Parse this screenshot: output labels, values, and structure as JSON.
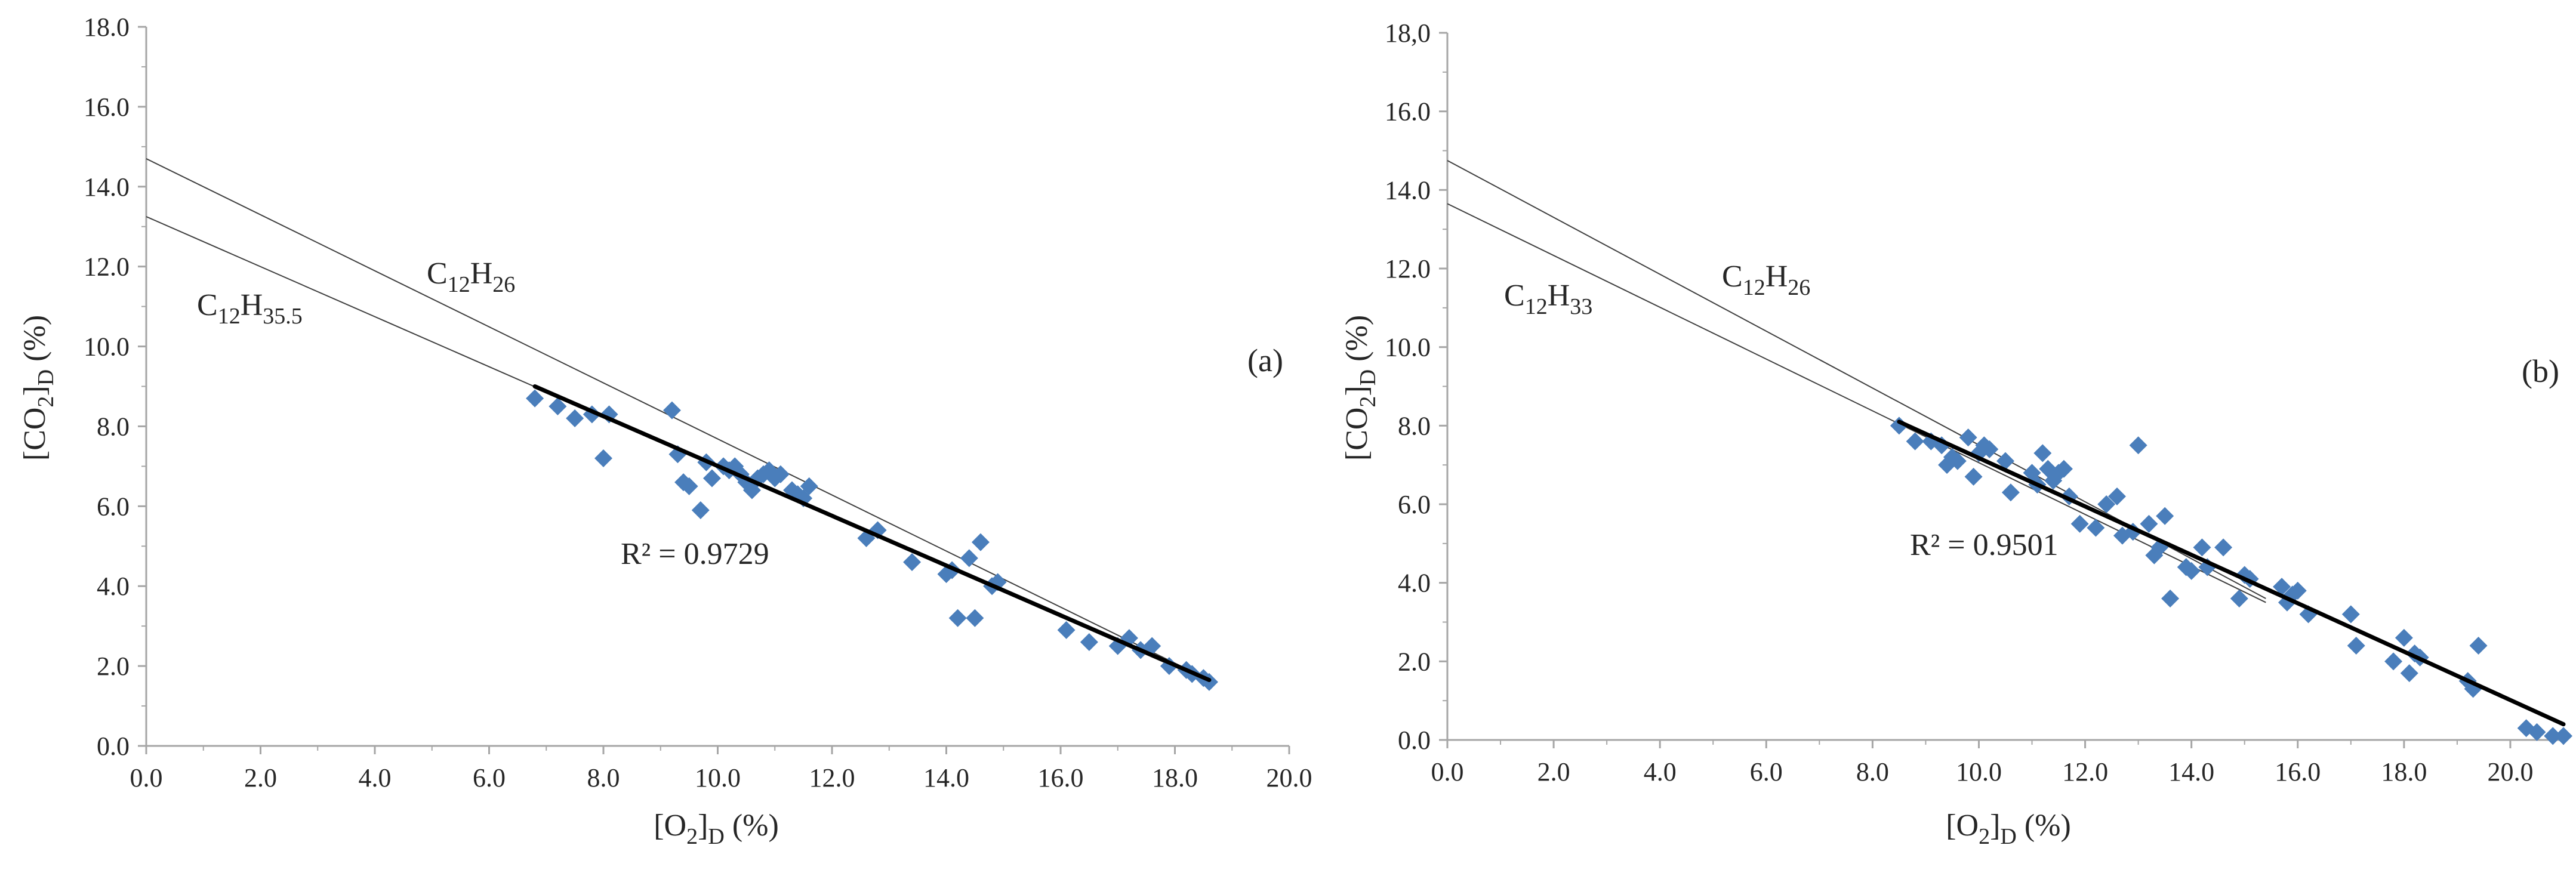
{
  "colors": {
    "marker": "#4a7ebb",
    "fit_line": "#000000",
    "reference_line": "#3f3f3f",
    "axis": "#a6a6a6",
    "text": "#262626"
  },
  "chart_data": [
    {
      "type": "scatter",
      "panel_label": "(a)",
      "xlabel": {
        "main": "[O",
        "sub1": "2",
        "mid": "]",
        "sub2": "D",
        "tail": " (%)"
      },
      "ylabel": {
        "main": "[CO",
        "sub1": "2",
        "mid": "]",
        "sub2": "D",
        "tail": " (%)"
      },
      "xlim": [
        0,
        20
      ],
      "ylim": [
        0,
        18
      ],
      "xticks": [
        "0.0",
        "2.0",
        "4.0",
        "6.0",
        "8.0",
        "10.0",
        "12.0",
        "14.0",
        "16.0",
        "18.0",
        "20.0"
      ],
      "yticks": [
        "0.0",
        "2.0",
        "4.0",
        "6.0",
        "8.0",
        "10.0",
        "12.0",
        "14.0",
        "16.0",
        "18.0"
      ],
      "r_squared_text": "R² = 0.9729",
      "fit_line": {
        "x": [
          6.8,
          18.6
        ],
        "y": [
          9.0,
          1.65
        ]
      },
      "reference_lines": [
        {
          "name": {
            "main": "C",
            "sub1": "12",
            "mid": "H",
            "sub2": "26"
          },
          "x": [
            0,
            18.6
          ],
          "y": [
            14.7,
            1.65
          ]
        },
        {
          "name": {
            "main": "C",
            "sub1": "12",
            "mid": "H",
            "sub2": "35.5"
          },
          "x": [
            0,
            18.6
          ],
          "y": [
            13.25,
            1.6
          ]
        }
      ],
      "points": {
        "x": [
          6.8,
          7.2,
          7.5,
          7.8,
          8.0,
          8.1,
          9.2,
          9.3,
          9.4,
          9.5,
          9.7,
          9.8,
          9.9,
          10.1,
          10.2,
          10.3,
          10.4,
          10.5,
          10.6,
          10.7,
          10.8,
          10.9,
          11.0,
          11.1,
          11.3,
          11.4,
          11.5,
          11.6,
          12.6,
          12.8,
          13.4,
          14.0,
          14.1,
          14.2,
          14.4,
          14.5,
          14.6,
          14.8,
          14.9,
          16.1,
          16.5,
          17.0,
          17.2,
          17.4,
          17.6,
          17.9,
          18.2,
          18.3,
          18.5,
          18.6
        ],
        "y": [
          8.7,
          8.5,
          8.2,
          8.3,
          7.2,
          8.3,
          8.4,
          7.3,
          6.6,
          6.5,
          5.9,
          7.1,
          6.7,
          7.0,
          6.9,
          7.0,
          6.8,
          6.6,
          6.4,
          6.7,
          6.8,
          6.9,
          6.7,
          6.8,
          6.4,
          6.3,
          6.2,
          6.5,
          5.2,
          5.4,
          4.6,
          4.3,
          4.4,
          3.2,
          4.7,
          3.2,
          5.1,
          4.0,
          4.1,
          2.9,
          2.6,
          2.5,
          2.7,
          2.4,
          2.5,
          2.0,
          1.9,
          1.8,
          1.7,
          1.6
        ]
      }
    },
    {
      "type": "scatter",
      "panel_label": "(b)",
      "xlabel": {
        "main": "[O",
        "sub1": "2",
        "mid": "]",
        "sub2": "D",
        "tail": " (%)"
      },
      "ylabel": {
        "main": "[CO",
        "sub1": "2",
        "mid": "]",
        "sub2": "D",
        "tail": " (%)"
      },
      "xlim": [
        0,
        21
      ],
      "ylim": [
        0,
        18
      ],
      "xticks": [
        "0.0",
        "2.0",
        "4.0",
        "6.0",
        "8.0",
        "10.0",
        "12.0",
        "14.0",
        "16.0",
        "18.0",
        "20.0"
      ],
      "yticks": [
        "0.0",
        "2.0",
        "4.0",
        "6.0",
        "8.0",
        "10.0",
        "12.0",
        "14.0",
        "16.0",
        "18,0"
      ],
      "r_squared_text": "R² = 0.9501",
      "fit_line": {
        "x": [
          8.5,
          21.0
        ],
        "y": [
          8.1,
          0.4
        ]
      },
      "reference_lines": [
        {
          "name": {
            "main": "C",
            "sub1": "12",
            "mid": "H",
            "sub2": "26"
          },
          "x": [
            0,
            15.4
          ],
          "y": [
            14.75,
            3.6
          ]
        },
        {
          "name": {
            "main": "C",
            "sub1": "12",
            "mid": "H",
            "sub2": "33"
          },
          "x": [
            0,
            15.4
          ],
          "y": [
            13.65,
            3.5
          ]
        }
      ],
      "points": {
        "x": [
          8.5,
          8.8,
          9.1,
          9.3,
          9.4,
          9.5,
          9.6,
          9.8,
          9.9,
          10.0,
          10.1,
          10.2,
          10.5,
          10.6,
          11.0,
          11.1,
          11.2,
          11.3,
          11.4,
          11.5,
          11.6,
          11.7,
          11.9,
          12.2,
          12.4,
          12.6,
          12.7,
          12.9,
          13.0,
          13.2,
          13.3,
          13.4,
          13.5,
          13.6,
          13.9,
          14.0,
          14.2,
          14.3,
          14.6,
          14.9,
          15.0,
          15.1,
          15.7,
          15.8,
          15.9,
          16.0,
          16.2,
          17.0,
          17.1,
          17.8,
          18.0,
          18.1,
          18.2,
          18.3,
          19.2,
          19.3,
          19.4,
          20.3,
          20.5,
          20.8,
          21.0
        ],
        "y": [
          8.0,
          7.6,
          7.6,
          7.5,
          7.0,
          7.2,
          7.1,
          7.7,
          6.7,
          7.3,
          7.5,
          7.4,
          7.1,
          6.3,
          6.8,
          6.5,
          7.3,
          6.9,
          6.6,
          6.8,
          6.9,
          6.2,
          5.5,
          5.4,
          6.0,
          6.2,
          5.2,
          5.3,
          7.5,
          5.5,
          4.7,
          4.9,
          5.7,
          3.6,
          4.4,
          4.3,
          4.9,
          4.4,
          4.9,
          3.6,
          4.2,
          4.1,
          3.9,
          3.5,
          3.7,
          3.8,
          3.2,
          3.2,
          2.4,
          2.0,
          2.6,
          1.7,
          2.2,
          2.1,
          1.5,
          1.3,
          2.4,
          0.3,
          0.2,
          0.1,
          0.1
        ]
      }
    }
  ]
}
